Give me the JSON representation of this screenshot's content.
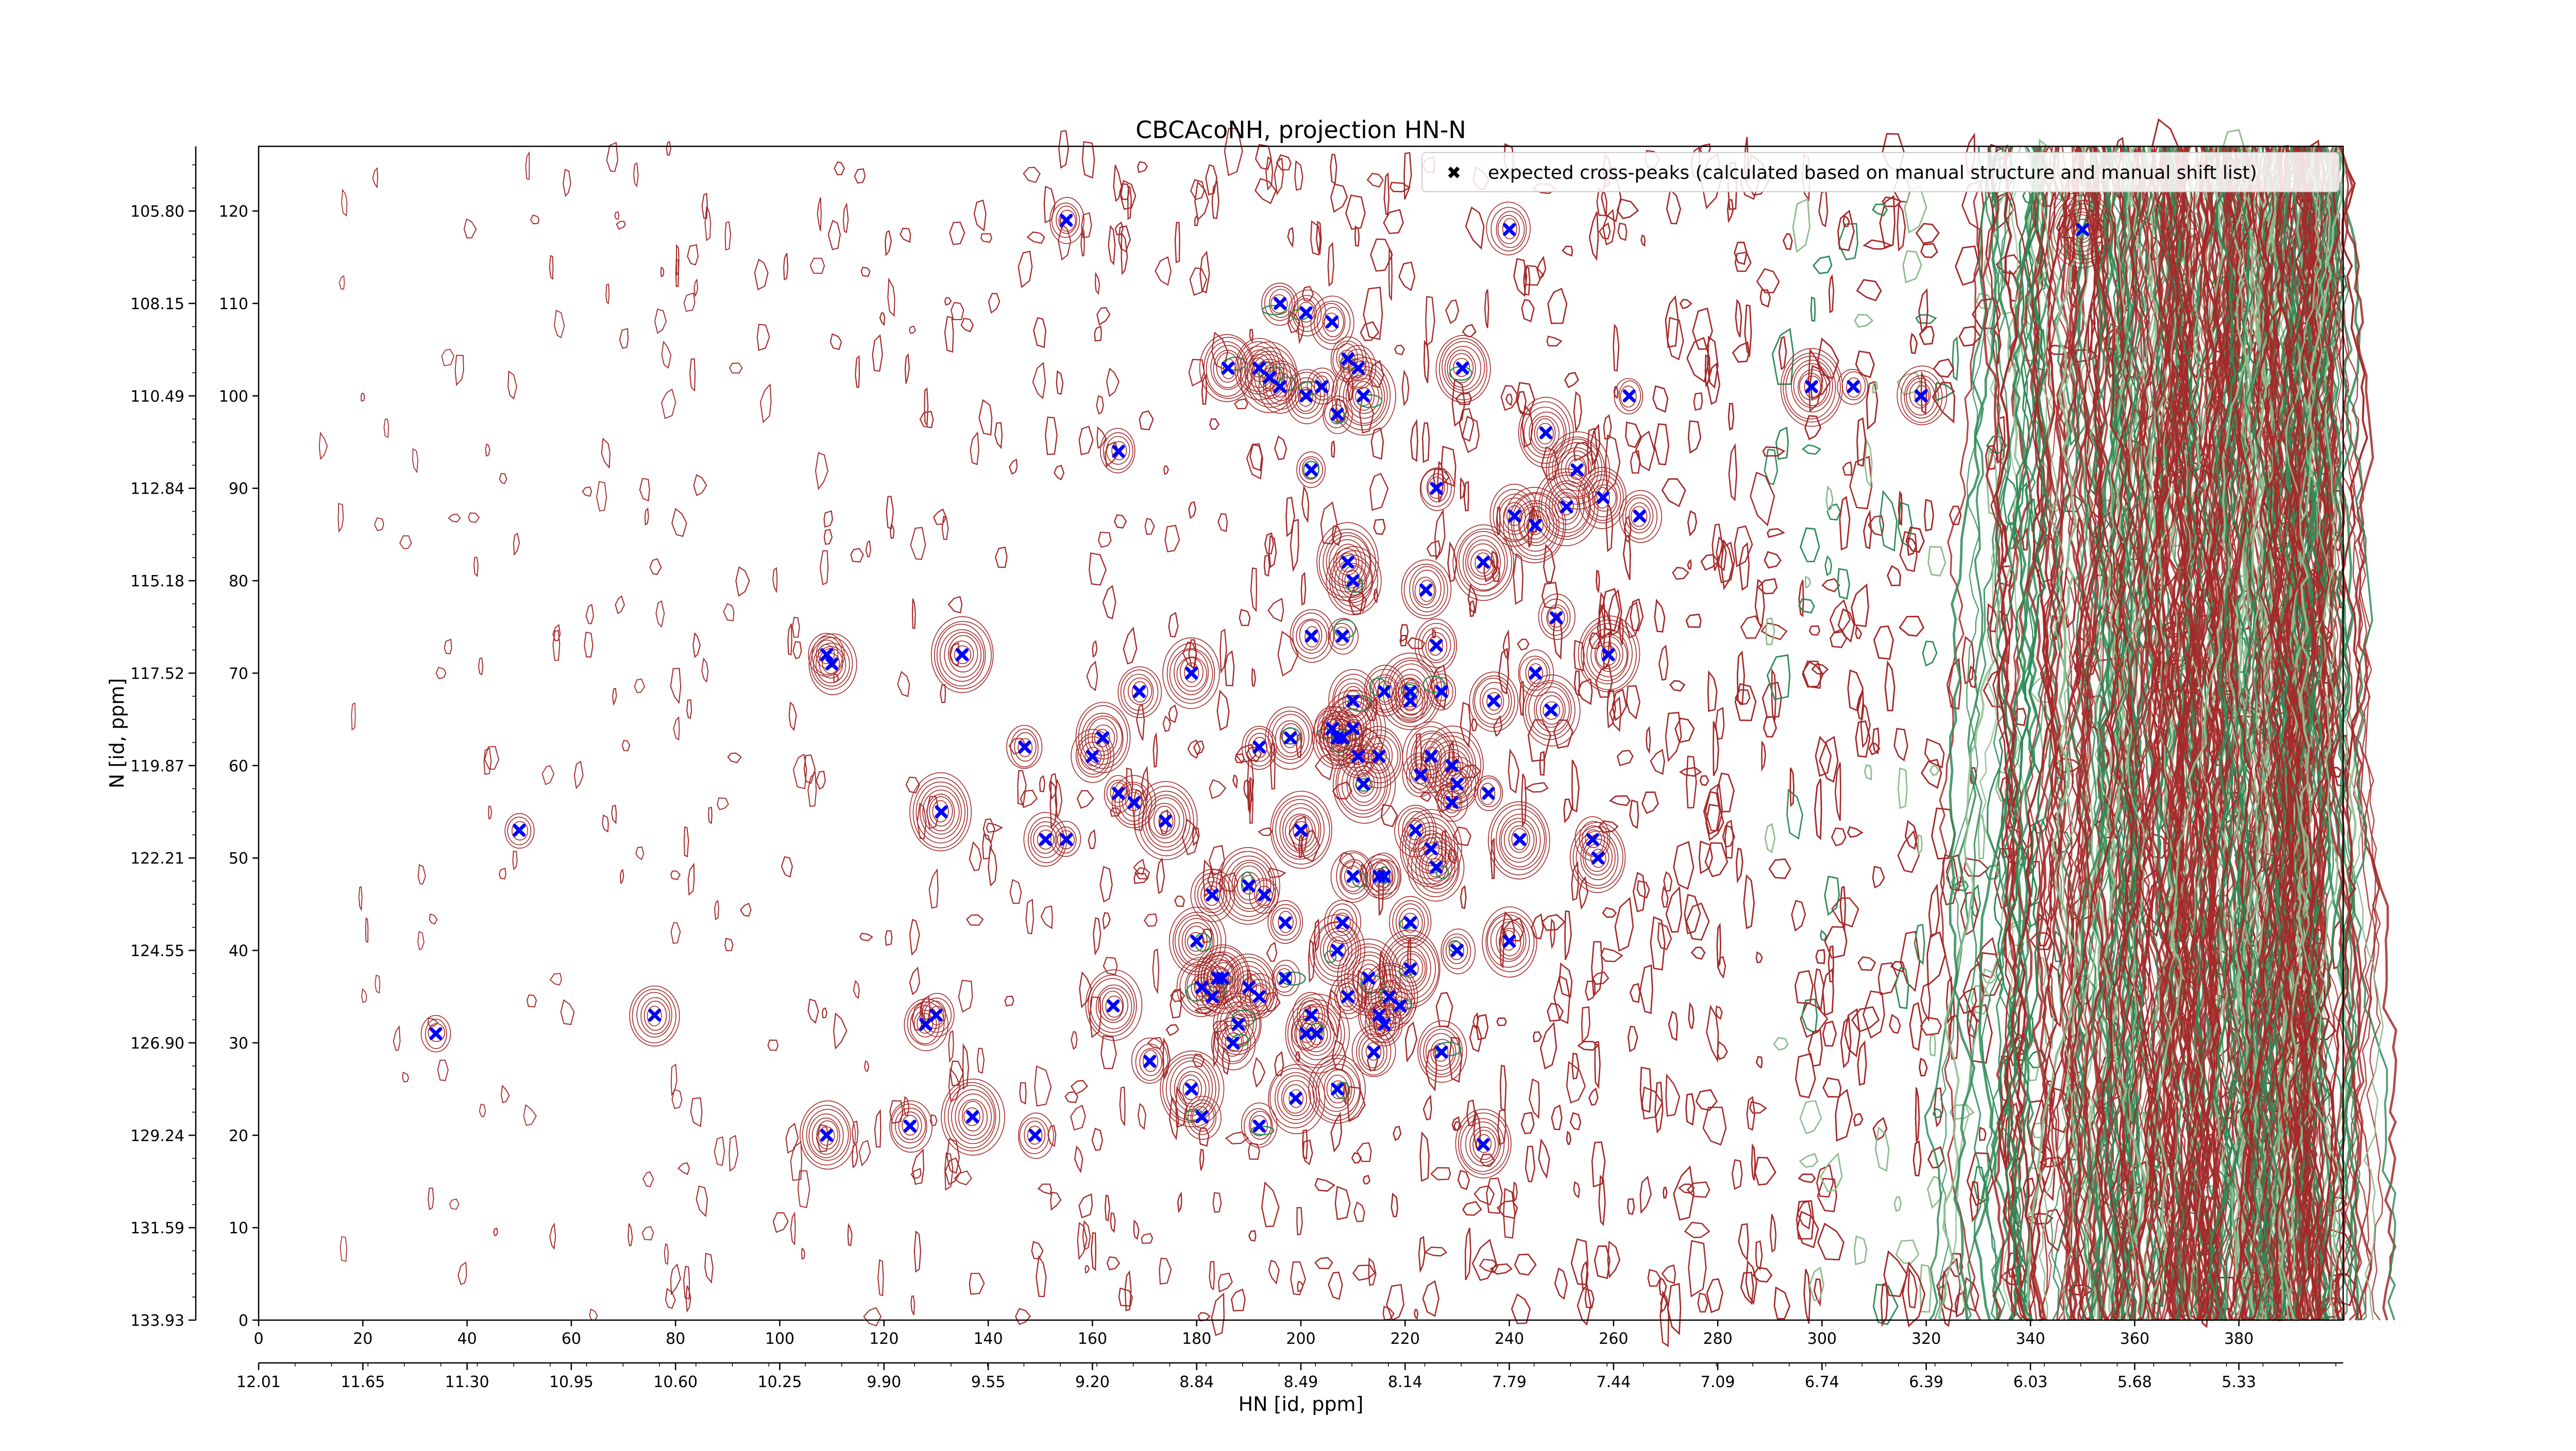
{
  "chart_data": {
    "type": "scatter",
    "title": "CBCAcoNH, projection HN-N",
    "xlabel": "HN [id, ppm]",
    "ylabel": "N [id, ppm]",
    "xlim": [
      0,
      400
    ],
    "ylim": [
      0,
      127
    ],
    "grid": false,
    "legend_position": "top-right",
    "x_index_ticks": [
      "0",
      "20",
      "40",
      "60",
      "80",
      "100",
      "120",
      "140",
      "160",
      "180",
      "200",
      "220",
      "240",
      "260",
      "280",
      "300",
      "320",
      "340",
      "360",
      "380"
    ],
    "y_index_ticks": [
      "0",
      "10",
      "20",
      "30",
      "40",
      "50",
      "60",
      "70",
      "80",
      "90",
      "100",
      "110",
      "120"
    ],
    "x_ppm_ticks": [
      "12.01",
      "11.65",
      "11.30",
      "10.95",
      "10.60",
      "10.25",
      "9.90",
      "9.55",
      "9.20",
      "8.84",
      "8.49",
      "8.14",
      "7.79",
      "7.44",
      "7.09",
      "6.74",
      "6.39",
      "6.03",
      "5.68",
      "5.33"
    ],
    "y_ppm_ticks": [
      "133.93",
      "131.59",
      "129.24",
      "126.90",
      "124.55",
      "122.21",
      "119.87",
      "117.52",
      "115.18",
      "112.84",
      "110.49",
      "108.15",
      "105.80"
    ],
    "series": [
      {
        "name": "expected cross-peaks (calculated based on manual structure and manual shift list)",
        "color": "#0000ff",
        "marker": "X",
        "x": [
          155,
          240,
          350,
          196,
          201,
          206,
          186,
          192,
          194,
          196,
          201,
          204,
          209,
          211,
          212,
          207,
          231,
          263,
          298,
          306,
          319,
          165,
          202,
          226,
          241,
          253,
          251,
          247,
          245,
          258,
          265,
          235,
          209,
          210,
          221,
          226,
          202,
          208,
          224,
          249,
          237,
          245,
          259,
          109,
          135,
          169,
          179,
          110,
          210,
          221,
          225,
          216,
          227,
          248,
          236,
          212,
          223,
          229,
          192,
          198,
          206,
          207,
          208,
          210,
          215,
          211,
          222,
          229,
          230,
          147,
          160,
          162,
          165,
          168,
          174,
          50,
          131,
          151,
          155,
          215,
          210,
          193,
          183,
          180,
          190,
          197,
          208,
          216,
          221,
          225,
          226,
          242,
          256,
          257,
          200,
          207,
          240,
          181,
          185,
          190,
          192,
          201,
          183,
          184,
          188,
          197,
          202,
          209,
          213,
          215,
          216,
          217,
          219,
          221,
          227,
          230,
          34,
          76,
          128,
          130,
          164,
          187,
          203,
          214,
          171,
          179,
          181,
          192,
          199,
          207,
          109,
          125,
          137,
          149,
          235
        ],
        "y": [
          119,
          118,
          118,
          110,
          109,
          108,
          103,
          103,
          102,
          101,
          100,
          101,
          104,
          103,
          100,
          98,
          103,
          100,
          101,
          101,
          100,
          94,
          92,
          90,
          87,
          92,
          88,
          96,
          86,
          89,
          87,
          82,
          82,
          80,
          68,
          73,
          74,
          74,
          79,
          76,
          67,
          70,
          72,
          72,
          72,
          68,
          70,
          71,
          67,
          67,
          61,
          68,
          68,
          66,
          57,
          58,
          59,
          60,
          62,
          63,
          64,
          63,
          63,
          64,
          61,
          61,
          53,
          56,
          58,
          62,
          61,
          63,
          57,
          56,
          54,
          53,
          55,
          52,
          52,
          48,
          48,
          46,
          46,
          41,
          47,
          43,
          43,
          48,
          43,
          51,
          49,
          52,
          52,
          50,
          53,
          40,
          41,
          36,
          37,
          36,
          35,
          31,
          35,
          37,
          32,
          37,
          33,
          35,
          37,
          33,
          32,
          35,
          34,
          38,
          29,
          40,
          31,
          33,
          32,
          33,
          34,
          30,
          31,
          29,
          28,
          25,
          22,
          21,
          24,
          25,
          20,
          21,
          22,
          20,
          19
        ]
      }
    ]
  }
}
